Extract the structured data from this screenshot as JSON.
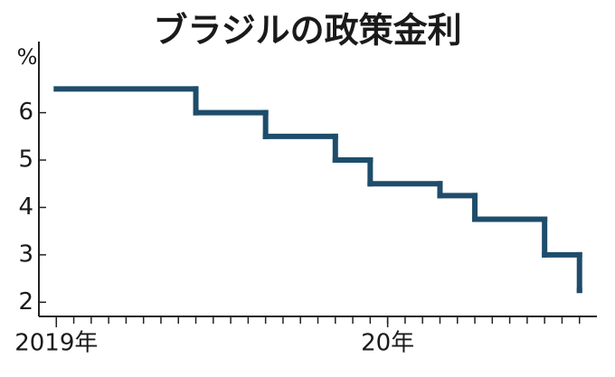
{
  "chart_data": {
    "type": "step",
    "title": "ブラジルの政策金利",
    "y_unit_label": "%",
    "x": [
      0,
      8,
      12,
      16,
      18,
      22,
      24,
      28,
      30
    ],
    "values": [
      6.5,
      6,
      5.5,
      5,
      4.5,
      4.25,
      3.75,
      3,
      2.25
    ],
    "color": "#1e4d6b",
    "xlim": [
      -1,
      31
    ],
    "xticks": [
      {
        "value": 0,
        "label": "2019年"
      },
      {
        "value": 19,
        "label": "20年"
      }
    ],
    "minor_xticks": [
      0,
      1,
      2,
      3,
      4,
      5,
      6,
      7,
      8,
      9,
      10,
      11,
      12,
      13,
      14,
      15,
      16,
      17,
      18,
      19,
      20,
      21,
      22,
      23,
      24,
      25,
      26,
      27,
      28,
      29,
      30
    ],
    "ylim": [
      1.7,
      7.5
    ],
    "yticks": [
      2,
      3,
      4,
      5,
      6
    ]
  }
}
